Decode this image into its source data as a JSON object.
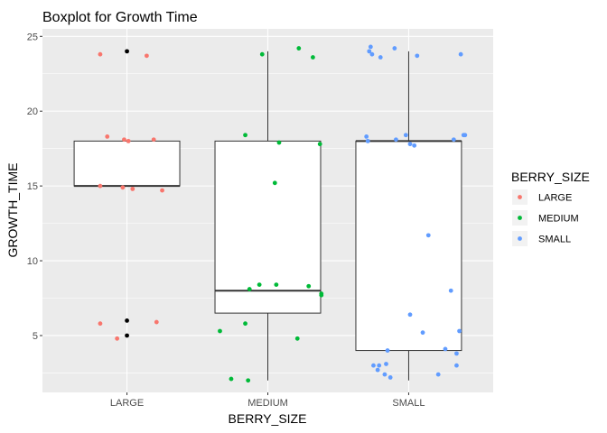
{
  "chart_data": {
    "type": "boxplot",
    "title": "Boxplot for Growth Time",
    "xlabel": "BERRY_SIZE",
    "ylabel": "GROWTH_TIME",
    "categories": [
      "LARGE",
      "MEDIUM",
      "SMALL"
    ],
    "ylim": [
      1.2,
      25.5
    ],
    "yticks": [
      5,
      10,
      15,
      20,
      25
    ],
    "grid": true,
    "legend": {
      "title": "BERRY_SIZE",
      "position": "right",
      "entries": [
        {
          "label": "LARGE",
          "color": "#F8766D"
        },
        {
          "label": "MEDIUM",
          "color": "#00BA38"
        },
        {
          "label": "SMALL",
          "color": "#619CFF"
        }
      ]
    },
    "boxes": [
      {
        "category": "LARGE",
        "q1": 15,
        "median": 15,
        "q3": 18,
        "whisker_low": 15,
        "whisker_high": 18,
        "outliers": [
          24,
          6,
          5
        ]
      },
      {
        "category": "MEDIUM",
        "q1": 6.5,
        "median": 8,
        "q3": 18,
        "whisker_low": 2,
        "whisker_high": 24,
        "outliers": []
      },
      {
        "category": "SMALL",
        "q1": 4,
        "median": 18,
        "q3": 18,
        "whisker_low": 2,
        "whisker_high": 24,
        "outliers": []
      }
    ],
    "points": [
      {
        "series": "LARGE",
        "x": 0.81,
        "y": 23.8
      },
      {
        "series": "LARGE",
        "x": 1.14,
        "y": 23.7
      },
      {
        "series": "LARGE",
        "x": 0.86,
        "y": 18.3
      },
      {
        "series": "LARGE",
        "x": 0.98,
        "y": 18.1
      },
      {
        "series": "LARGE",
        "x": 1.01,
        "y": 18.0
      },
      {
        "series": "LARGE",
        "x": 1.19,
        "y": 18.1
      },
      {
        "series": "LARGE",
        "x": 0.81,
        "y": 15.0
      },
      {
        "series": "LARGE",
        "x": 0.97,
        "y": 14.9
      },
      {
        "series": "LARGE",
        "x": 1.04,
        "y": 14.8
      },
      {
        "series": "LARGE",
        "x": 1.25,
        "y": 14.7
      },
      {
        "series": "LARGE",
        "x": 0.81,
        "y": 5.8
      },
      {
        "series": "LARGE",
        "x": 1.21,
        "y": 5.9
      },
      {
        "series": "LARGE",
        "x": 0.93,
        "y": 4.8
      },
      {
        "series": "MEDIUM",
        "x": 1.96,
        "y": 23.8
      },
      {
        "series": "MEDIUM",
        "x": 2.22,
        "y": 24.2
      },
      {
        "series": "MEDIUM",
        "x": 2.32,
        "y": 23.6
      },
      {
        "series": "MEDIUM",
        "x": 1.84,
        "y": 18.4
      },
      {
        "series": "MEDIUM",
        "x": 2.08,
        "y": 17.9
      },
      {
        "series": "MEDIUM",
        "x": 2.37,
        "y": 17.8
      },
      {
        "series": "MEDIUM",
        "x": 2.05,
        "y": 15.2
      },
      {
        "series": "MEDIUM",
        "x": 1.87,
        "y": 8.1
      },
      {
        "series": "MEDIUM",
        "x": 1.94,
        "y": 8.4
      },
      {
        "series": "MEDIUM",
        "x": 2.06,
        "y": 8.4
      },
      {
        "series": "MEDIUM",
        "x": 2.29,
        "y": 8.3
      },
      {
        "series": "MEDIUM",
        "x": 2.38,
        "y": 7.8
      },
      {
        "series": "MEDIUM",
        "x": 2.38,
        "y": 7.7
      },
      {
        "series": "MEDIUM",
        "x": 1.66,
        "y": 5.3
      },
      {
        "series": "MEDIUM",
        "x": 1.84,
        "y": 5.8
      },
      {
        "series": "MEDIUM",
        "x": 2.21,
        "y": 4.8
      },
      {
        "series": "MEDIUM",
        "x": 1.74,
        "y": 2.1
      },
      {
        "series": "MEDIUM",
        "x": 1.86,
        "y": 2.0
      },
      {
        "series": "SMALL",
        "x": 2.72,
        "y": 24.0
      },
      {
        "series": "SMALL",
        "x": 2.73,
        "y": 24.3
      },
      {
        "series": "SMALL",
        "x": 2.74,
        "y": 23.8
      },
      {
        "series": "SMALL",
        "x": 2.8,
        "y": 23.6
      },
      {
        "series": "SMALL",
        "x": 2.9,
        "y": 24.2
      },
      {
        "series": "SMALL",
        "x": 3.06,
        "y": 23.7
      },
      {
        "series": "SMALL",
        "x": 3.37,
        "y": 23.8
      },
      {
        "series": "SMALL",
        "x": 2.7,
        "y": 18.3
      },
      {
        "series": "SMALL",
        "x": 2.71,
        "y": 18.0
      },
      {
        "series": "SMALL",
        "x": 2.91,
        "y": 18.1
      },
      {
        "series": "SMALL",
        "x": 2.98,
        "y": 18.4
      },
      {
        "series": "SMALL",
        "x": 3.01,
        "y": 17.8
      },
      {
        "series": "SMALL",
        "x": 3.04,
        "y": 17.7
      },
      {
        "series": "SMALL",
        "x": 3.32,
        "y": 18.1
      },
      {
        "series": "SMALL",
        "x": 3.39,
        "y": 18.4
      },
      {
        "series": "SMALL",
        "x": 3.4,
        "y": 18.4
      },
      {
        "series": "SMALL",
        "x": 3.14,
        "y": 11.7
      },
      {
        "series": "SMALL",
        "x": 3.3,
        "y": 8.0
      },
      {
        "series": "SMALL",
        "x": 3.01,
        "y": 6.4
      },
      {
        "series": "SMALL",
        "x": 3.1,
        "y": 5.2
      },
      {
        "series": "SMALL",
        "x": 3.36,
        "y": 5.3
      },
      {
        "series": "SMALL",
        "x": 2.85,
        "y": 4.0
      },
      {
        "series": "SMALL",
        "x": 3.26,
        "y": 4.1
      },
      {
        "series": "SMALL",
        "x": 3.34,
        "y": 3.8
      },
      {
        "series": "SMALL",
        "x": 2.75,
        "y": 3.0
      },
      {
        "series": "SMALL",
        "x": 2.79,
        "y": 3.0
      },
      {
        "series": "SMALL",
        "x": 2.78,
        "y": 2.7
      },
      {
        "series": "SMALL",
        "x": 2.84,
        "y": 3.1
      },
      {
        "series": "SMALL",
        "x": 2.83,
        "y": 2.4
      },
      {
        "series": "SMALL",
        "x": 2.87,
        "y": 2.2
      },
      {
        "series": "SMALL",
        "x": 3.21,
        "y": 2.4
      },
      {
        "series": "SMALL",
        "x": 3.34,
        "y": 3.0
      }
    ]
  },
  "colors": {
    "panel_background": "#EBEBEB",
    "grid_major": "#FFFFFF",
    "outlier": "#000000",
    "box_fill": "#FFFFFF",
    "box_line": "#333333"
  }
}
